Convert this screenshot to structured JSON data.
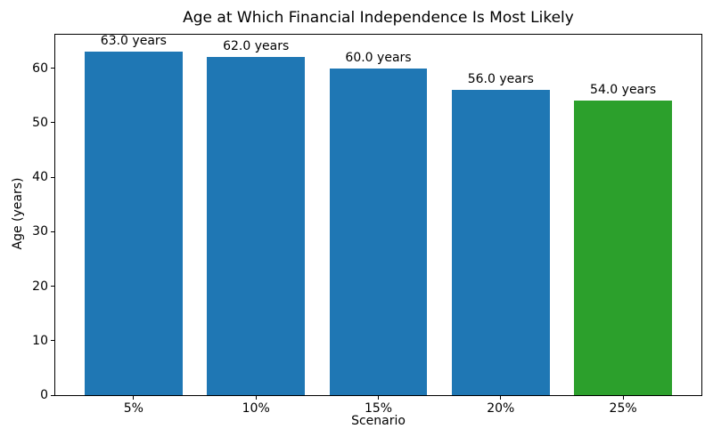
{
  "figure": {
    "background": "#ffffff"
  },
  "chart_data": {
    "type": "bar",
    "title": "Age at Which Financial Independence Is Most Likely",
    "xlabel": "Scenario",
    "ylabel": "Age (years)",
    "categories": [
      "5%",
      "10%",
      "15%",
      "20%",
      "25%"
    ],
    "values": [
      63.0,
      62.0,
      60.0,
      56.0,
      54.0
    ],
    "bar_labels": [
      "63.0 years",
      "62.0 years",
      "60.0 years",
      "56.0 years",
      "54.0 years"
    ],
    "bar_colors": [
      "#1f77b4",
      "#1f77b4",
      "#1f77b4",
      "#1f77b4",
      "#2ca02c"
    ],
    "default_bar_color": "#1f77b4",
    "highlight_color": "#2ca02c",
    "yticks": [
      0,
      10,
      20,
      30,
      40,
      50,
      60
    ],
    "ylim": [
      0,
      66.15
    ],
    "grid": false,
    "legend_position": "none",
    "bar_width_fraction": 0.8,
    "x_margin_units": 0.64
  }
}
